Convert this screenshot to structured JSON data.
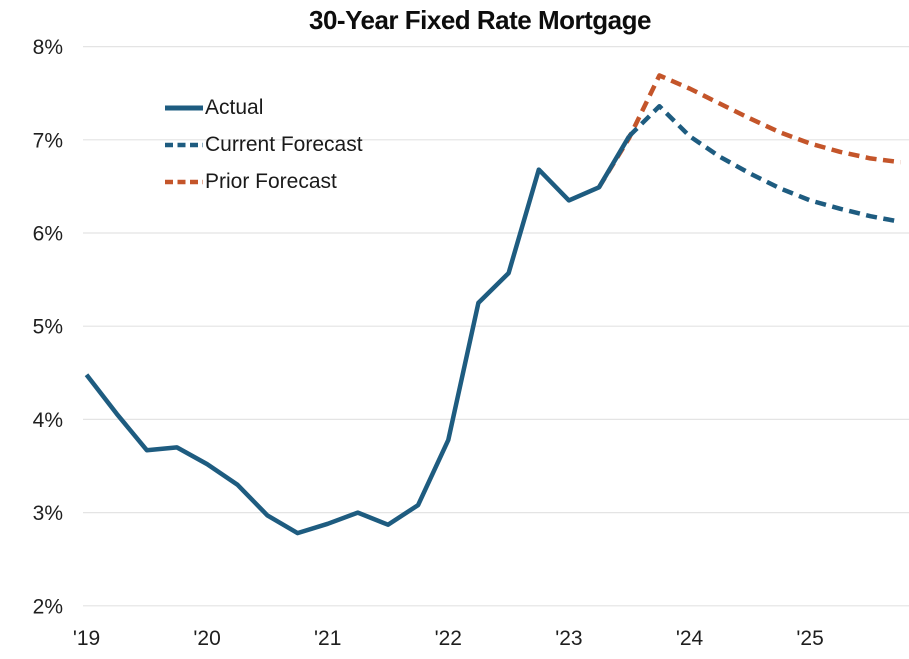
{
  "chart_data": {
    "type": "line",
    "title": "30-Year Fixed Rate Mortgage",
    "xlabel": "",
    "ylabel": "",
    "ylim": [
      2,
      8
    ],
    "xlim": [
      2018.95,
      2025.85
    ],
    "grid": "horizontal",
    "legend_position": "upper-left-inside",
    "gridline_color": "#e4e4e4",
    "tick_text_color": "#1f1f1f",
    "y_ticks": [
      {
        "value": 2,
        "label": "2%"
      },
      {
        "value": 3,
        "label": "3%"
      },
      {
        "value": 4,
        "label": "4%"
      },
      {
        "value": 5,
        "label": "5%"
      },
      {
        "value": 6,
        "label": "6%"
      },
      {
        "value": 7,
        "label": "7%"
      },
      {
        "value": 8,
        "label": "8%"
      }
    ],
    "x_ticks": [
      {
        "value": 2019,
        "label": "'19"
      },
      {
        "value": 2020,
        "label": "'20"
      },
      {
        "value": 2021,
        "label": "'21"
      },
      {
        "value": 2022,
        "label": "'22"
      },
      {
        "value": 2023,
        "label": "'23"
      },
      {
        "value": 2024,
        "label": "'24"
      },
      {
        "value": 2025,
        "label": "'25"
      }
    ],
    "series": [
      {
        "name": "Actual",
        "color": "#1e5c80",
        "style": "solid",
        "points": [
          [
            2019.0,
            4.48
          ],
          [
            2019.25,
            4.06
          ],
          [
            2019.5,
            3.67
          ],
          [
            2019.75,
            3.7
          ],
          [
            2020.0,
            3.52
          ],
          [
            2020.25,
            3.3
          ],
          [
            2020.5,
            2.97
          ],
          [
            2020.75,
            2.78
          ],
          [
            2021.0,
            2.88
          ],
          [
            2021.25,
            3.0
          ],
          [
            2021.5,
            2.87
          ],
          [
            2021.75,
            3.08
          ],
          [
            2022.0,
            3.78
          ],
          [
            2022.25,
            5.25
          ],
          [
            2022.5,
            5.57
          ],
          [
            2022.75,
            6.68
          ],
          [
            2023.0,
            6.35
          ],
          [
            2023.25,
            6.49
          ],
          [
            2023.5,
            7.04
          ]
        ]
      },
      {
        "name": "Current Forecast",
        "color": "#1e5c80",
        "style": "dashed",
        "points": [
          [
            2023.5,
            7.04
          ],
          [
            2023.75,
            7.36
          ],
          [
            2024.0,
            7.04
          ],
          [
            2024.25,
            6.82
          ],
          [
            2024.5,
            6.64
          ],
          [
            2024.75,
            6.48
          ],
          [
            2025.0,
            6.35
          ],
          [
            2025.25,
            6.26
          ],
          [
            2025.5,
            6.18
          ],
          [
            2025.75,
            6.12
          ]
        ]
      },
      {
        "name": "Prior Forecast",
        "color": "#c4552a",
        "style": "dashed",
        "points": [
          [
            2023.25,
            6.49
          ],
          [
            2023.5,
            7.02
          ],
          [
            2023.75,
            7.69
          ],
          [
            2024.0,
            7.55
          ],
          [
            2024.25,
            7.39
          ],
          [
            2024.5,
            7.23
          ],
          [
            2024.75,
            7.08
          ],
          [
            2025.0,
            6.96
          ],
          [
            2025.25,
            6.87
          ],
          [
            2025.5,
            6.8
          ],
          [
            2025.75,
            6.76
          ]
        ]
      }
    ]
  }
}
